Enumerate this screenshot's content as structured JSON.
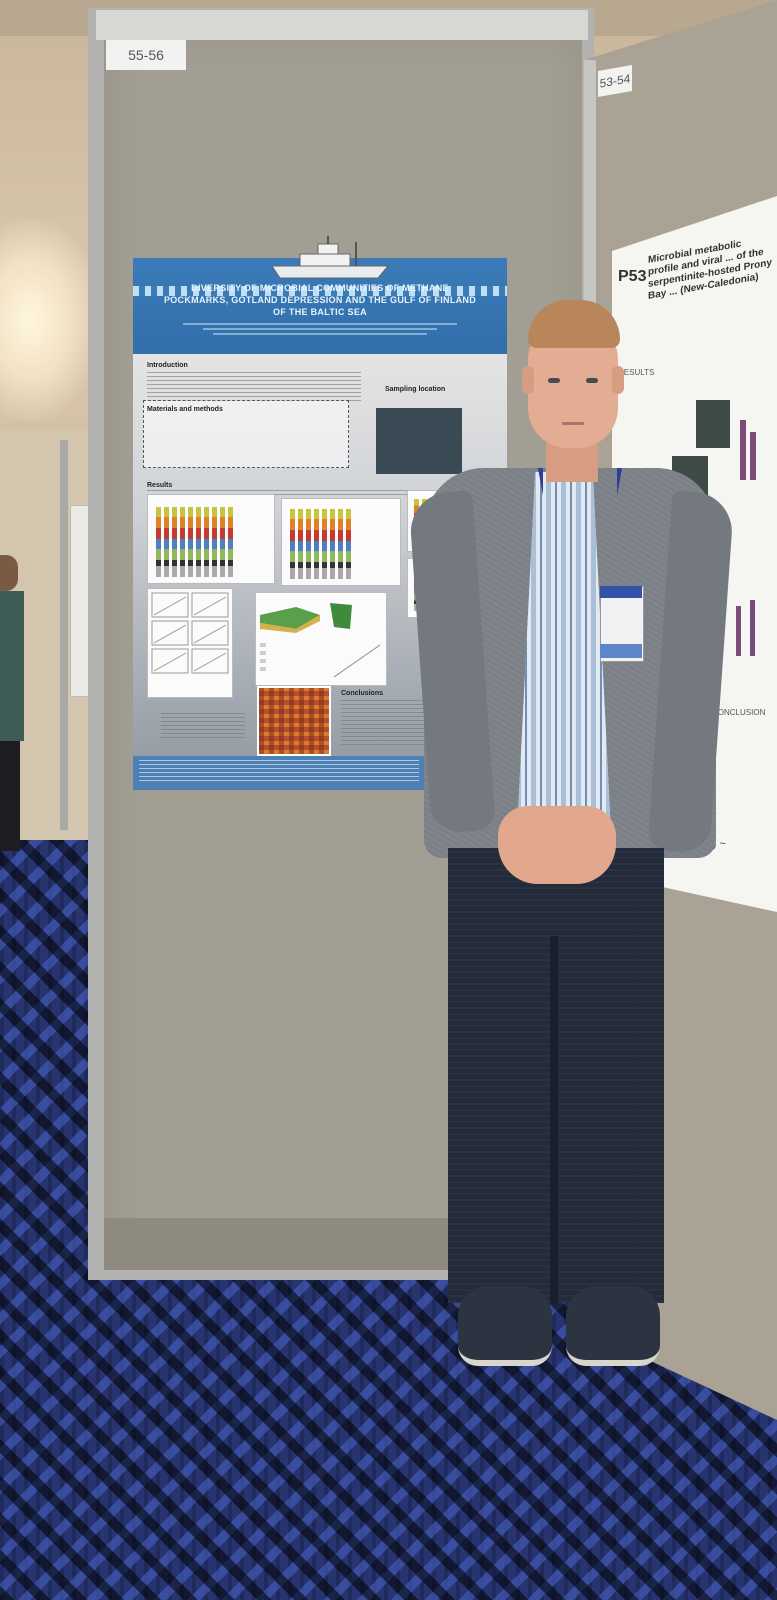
{
  "board": {
    "label": "55-56"
  },
  "right_board": {
    "label": "53-54"
  },
  "poster": {
    "title": "DIVERSITY OF MICROBIAL COMMUNITIES OF METHANE POCKMARKS, GOTLAND DEPRESSION AND THE GULF OF FINLAND OF THE BALTIC SEA",
    "sections": {
      "introduction": "Introduction",
      "materials": "Materials and methods",
      "sampling": "Sampling location",
      "results": "Results",
      "conclusions": "Conclusions"
    }
  },
  "right_poster": {
    "code": "P53",
    "title": "Microbial metabolic profile and viral ... of the serpentinite-hosted Prony Bay ... (New-Caledonia)",
    "results_heading": "RESULTS",
    "conclusion_heading": "CONCLUSION"
  },
  "colors": {
    "carpet": "#27346f",
    "poster_blue": "#3a7bb8",
    "board": "#a39e93",
    "jacket": "#7b7f86",
    "lanyard": "#2a3e9a"
  }
}
